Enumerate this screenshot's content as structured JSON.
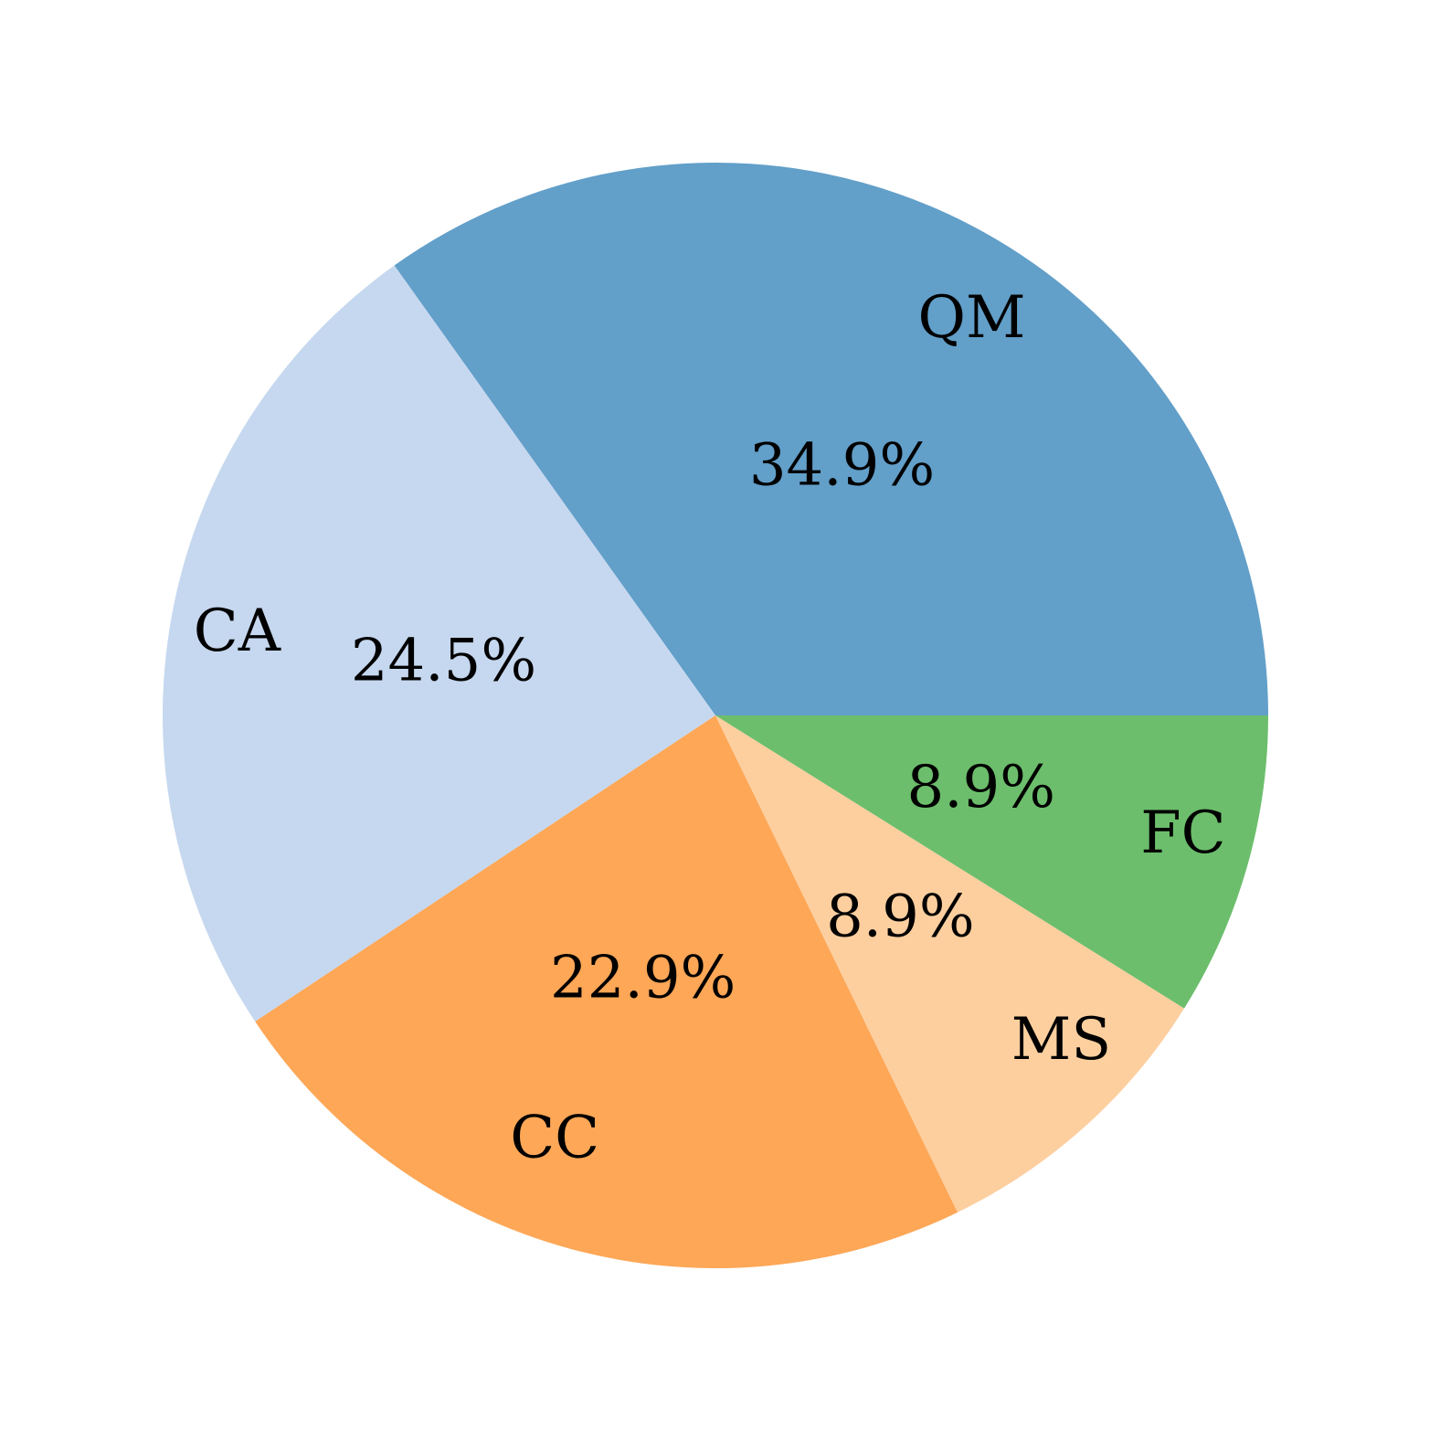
{
  "chart_data": {
    "type": "pie",
    "categories": [
      "QM",
      "CA",
      "CC",
      "MS",
      "FC"
    ],
    "values": [
      34.9,
      24.5,
      22.9,
      8.9,
      8.9
    ],
    "value_labels": [
      "34.9%",
      "24.5%",
      "22.9%",
      "8.9%",
      "8.9%"
    ],
    "colors": [
      "#629fc9",
      "#c6d8ef",
      "#fda757",
      "#fdcf9f",
      "#6cbe6c"
    ]
  }
}
